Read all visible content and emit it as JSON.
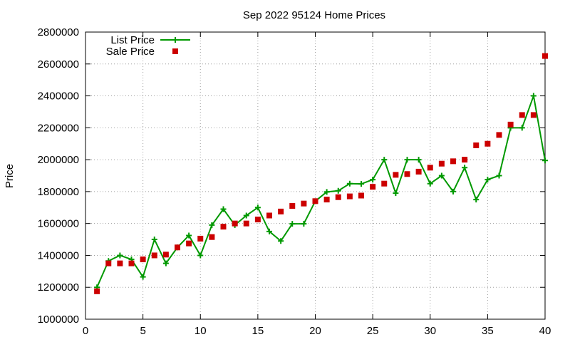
{
  "chart_data": {
    "type": "line",
    "title": "Sep 2022 95124 Home Prices",
    "xlabel": "",
    "ylabel": "Price",
    "xlim": [
      0,
      40
    ],
    "ylim": [
      1000000,
      2800000
    ],
    "x_ticks": [
      0,
      5,
      10,
      15,
      20,
      25,
      30,
      35,
      40
    ],
    "y_ticks": [
      1000000,
      1200000,
      1400000,
      1600000,
      1800000,
      2000000,
      2200000,
      2400000,
      2600000,
      2800000
    ],
    "grid": true,
    "legend_position": "top-left",
    "series": [
      {
        "name": "List Price",
        "style": "line-with-plus-markers",
        "color": "#009900",
        "x": [
          1,
          2,
          3,
          4,
          5,
          6,
          7,
          8,
          9,
          10,
          11,
          12,
          13,
          14,
          15,
          16,
          17,
          18,
          19,
          20,
          21,
          22,
          23,
          24,
          25,
          26,
          27,
          28,
          29,
          30,
          31,
          32,
          33,
          34,
          35,
          36,
          37,
          38,
          39,
          40
        ],
        "values": [
          1200000,
          1365000,
          1400000,
          1375000,
          1265000,
          1500000,
          1350000,
          1450000,
          1525000,
          1400000,
          1590000,
          1690000,
          1590000,
          1650000,
          1700000,
          1550000,
          1490000,
          1598000,
          1598000,
          1740000,
          1798000,
          1805000,
          1850000,
          1848000,
          1875000,
          2000000,
          1790000,
          2000000,
          2000000,
          1850000,
          1900000,
          1800000,
          1950000,
          1750000,
          1875000,
          1900000,
          2200000,
          2200000,
          2400000,
          1995000
        ]
      },
      {
        "name": "Sale Price",
        "style": "square-markers",
        "color": "#cc0000",
        "x": [
          1,
          2,
          3,
          4,
          5,
          6,
          7,
          8,
          9,
          10,
          11,
          12,
          13,
          14,
          15,
          16,
          17,
          18,
          19,
          20,
          21,
          22,
          23,
          24,
          25,
          26,
          27,
          28,
          29,
          30,
          31,
          32,
          33,
          34,
          35,
          36,
          37,
          38,
          39,
          40
        ],
        "values": [
          1175000,
          1350000,
          1350000,
          1350000,
          1375000,
          1400000,
          1405000,
          1450000,
          1475000,
          1505000,
          1515000,
          1580000,
          1600000,
          1600000,
          1625000,
          1650000,
          1675000,
          1710000,
          1725000,
          1740000,
          1750000,
          1765000,
          1770000,
          1775000,
          1830000,
          1850000,
          1905000,
          1910000,
          1925000,
          1950000,
          1975000,
          1990000,
          2000000,
          2090000,
          2100000,
          2155000,
          2220000,
          2280000,
          2280000,
          2650000
        ]
      }
    ]
  }
}
